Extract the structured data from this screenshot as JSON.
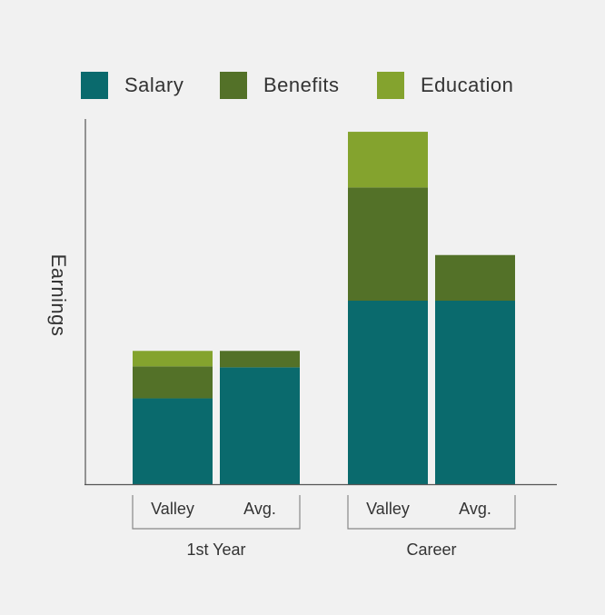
{
  "chart_data": {
    "type": "bar",
    "stacked": true,
    "title": "",
    "xlabel": "",
    "ylabel": "Earnings",
    "categories": [
      "Valley",
      "Avg.",
      "Valley",
      "Avg."
    ],
    "groups": [
      {
        "label": "1st Year",
        "categories": [
          "Valley",
          "Avg."
        ]
      },
      {
        "label": "Career",
        "categories": [
          "Valley",
          "Avg."
        ]
      }
    ],
    "series": [
      {
        "name": "Salary",
        "color": "#0a6a6d",
        "values": [
          94,
          128,
          201,
          201
        ]
      },
      {
        "name": "Benefits",
        "color": "#537128",
        "values": [
          35,
          18,
          124,
          50
        ]
      },
      {
        "name": "Education",
        "color": "#84a32e",
        "values": [
          17,
          0,
          61,
          0
        ]
      }
    ],
    "ylim": [
      0,
      400
    ],
    "y_ticks_shown": false,
    "grid": false,
    "legend_position": "top"
  }
}
